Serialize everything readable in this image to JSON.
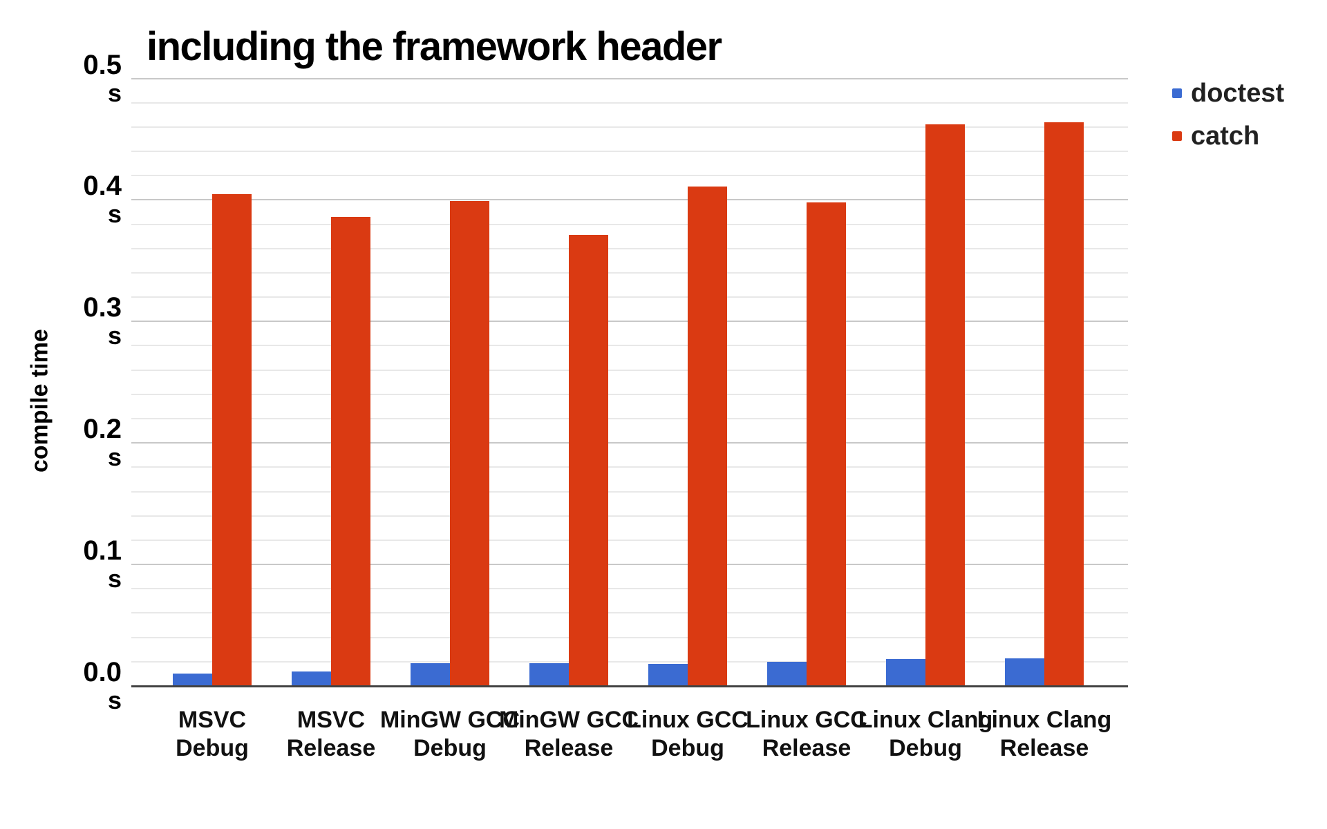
{
  "chart_data": {
    "type": "bar",
    "title": "including the framework header",
    "ylabel": "compile time",
    "unit": "s",
    "categories": [
      [
        "MSVC",
        "Debug"
      ],
      [
        "MSVC",
        "Release"
      ],
      [
        "MinGW GCC",
        "Debug"
      ],
      [
        "MinGW GCC",
        "Release"
      ],
      [
        "Linux GCC",
        "Debug"
      ],
      [
        "Linux GCC",
        "Release"
      ],
      [
        "Linux Clang",
        "Debug"
      ],
      [
        "Linux Clang",
        "Release"
      ]
    ],
    "series": [
      {
        "name": "doctest",
        "color": "#3b6bd2",
        "values": [
          0.01,
          0.012,
          0.019,
          0.019,
          0.018,
          0.02,
          0.022,
          0.023
        ]
      },
      {
        "name": "catch",
        "color": "#da3a12",
        "values": [
          0.405,
          0.386,
          0.399,
          0.371,
          0.411,
          0.398,
          0.462,
          0.464
        ]
      }
    ],
    "ylim": [
      0,
      0.5
    ],
    "ytick_step": 0.1,
    "minor_gridline_step": 0.02,
    "yticks": [
      {
        "value": 0.0,
        "label": "0.0",
        "unit": "s"
      },
      {
        "value": 0.1,
        "label": "0.1",
        "unit": "s"
      },
      {
        "value": 0.2,
        "label": "0.2",
        "unit": "s"
      },
      {
        "value": 0.3,
        "label": "0.3",
        "unit": "s"
      },
      {
        "value": 0.4,
        "label": "0.4",
        "unit": "s"
      },
      {
        "value": 0.5,
        "label": "0.5",
        "unit": "s"
      }
    ],
    "legend_position": "right",
    "grid": "on",
    "colors": {
      "major_gridline": "#c8c8c8",
      "minor_gridline": "#e8e8e8",
      "axis_baseline": "#424242",
      "title_text": "#000000",
      "label_text": "#111111"
    }
  }
}
